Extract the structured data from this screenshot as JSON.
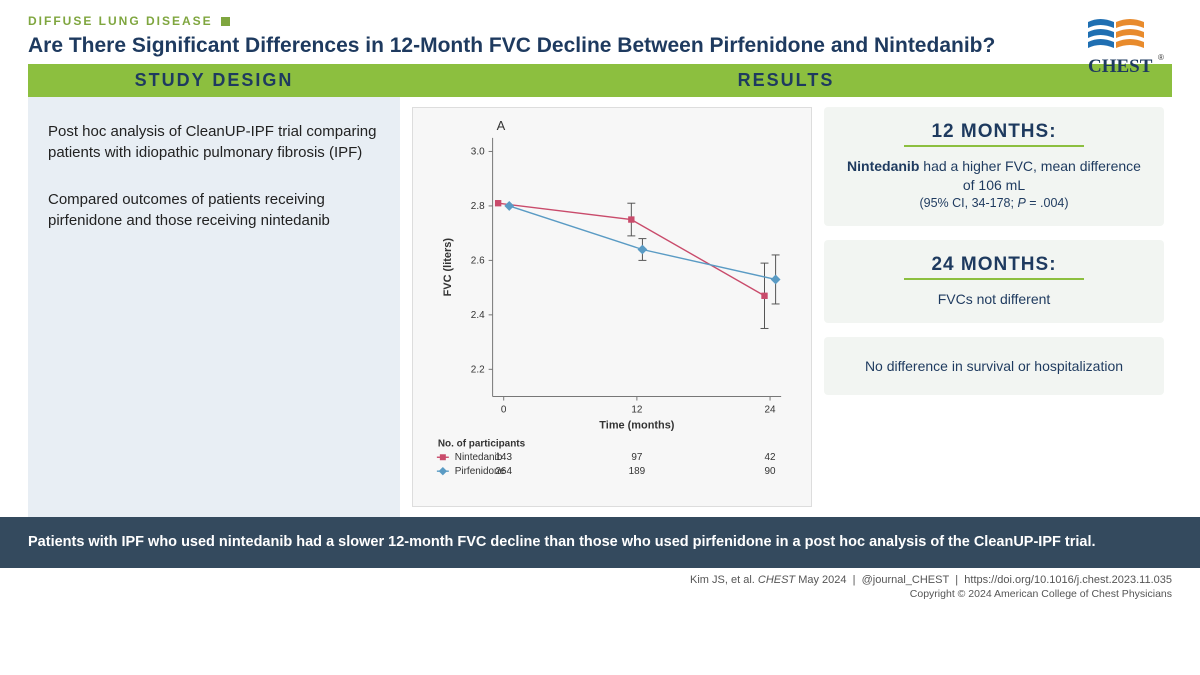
{
  "header": {
    "category": "DIFFUSE LUNG DISEASE",
    "title": "Are There Significant Differences in 12-Month FVC Decline Between Pirfenidone and Nintedanib?",
    "logo_colors": {
      "blue": "#1f6fb2",
      "orange": "#e88b2d"
    },
    "logo_text": "CHEST"
  },
  "study_design": {
    "heading": "STUDY DESIGN",
    "p1": "Post hoc analysis of CleanUP-IPF trial comparing patients with idiopathic pulmonary fibrosis (IPF)",
    "p2": "Compared outcomes of patients receiving pirfenidone and those receiving nintedanib"
  },
  "results": {
    "heading": "RESULTS",
    "cards": [
      {
        "title": "12 MONTHS:",
        "body_pre": "",
        "body_strong": "Nintedanib",
        "body_post": " had a higher FVC, mean difference of 106 mL",
        "sub": "(95% CI, 34-178; P = .004)"
      },
      {
        "title": "24 MONTHS:",
        "body_pre": "FVCs not different",
        "body_strong": "",
        "body_post": "",
        "sub": ""
      },
      {
        "title": "",
        "body_pre": "No difference in survival or hospitalization",
        "body_strong": "",
        "body_post": "",
        "sub": ""
      }
    ]
  },
  "chart": {
    "type": "line",
    "panel_label": "A",
    "ylabel": "FVC (liters)",
    "xlabel": "Time (months)",
    "x_ticks": [
      0,
      12,
      24
    ],
    "y_ticks": [
      2.2,
      2.4,
      2.6,
      2.8,
      3.0
    ],
    "ylim": [
      2.1,
      3.05
    ],
    "xlim": [
      -1,
      25
    ],
    "background_color": "#f7f7f7",
    "axis_color": "#777777",
    "series": [
      {
        "name": "Nintedanib",
        "color": "#c94b6b",
        "marker": "square",
        "x": [
          0,
          12,
          24
        ],
        "y": [
          2.81,
          2.75,
          2.47
        ],
        "err": [
          0.0,
          0.06,
          0.12
        ]
      },
      {
        "name": "Pirfenidone",
        "color": "#5a9bc4",
        "marker": "diamond",
        "x": [
          0,
          12,
          24
        ],
        "y": [
          2.8,
          2.64,
          2.53
        ],
        "err": [
          0.0,
          0.04,
          0.09
        ]
      }
    ],
    "participants_label": "No. of participants",
    "participants": {
      "Nintedanib": [
        143,
        97,
        42
      ],
      "Pirfenidone": [
        264,
        189,
        90
      ]
    }
  },
  "conclusion": "Patients with IPF who used nintedanib had a slower 12-month FVC decline than those who used pirfenidone in a post hoc analysis of the CleanUP-IPF trial.",
  "footer": {
    "line1": "Kim JS, et al. CHEST May 2024  |  @journal_CHEST  |  https://doi.org/10.1016/j.chest.2023.11.035",
    "line2": "Copyright © 2024 American College of Chest Physicians"
  }
}
